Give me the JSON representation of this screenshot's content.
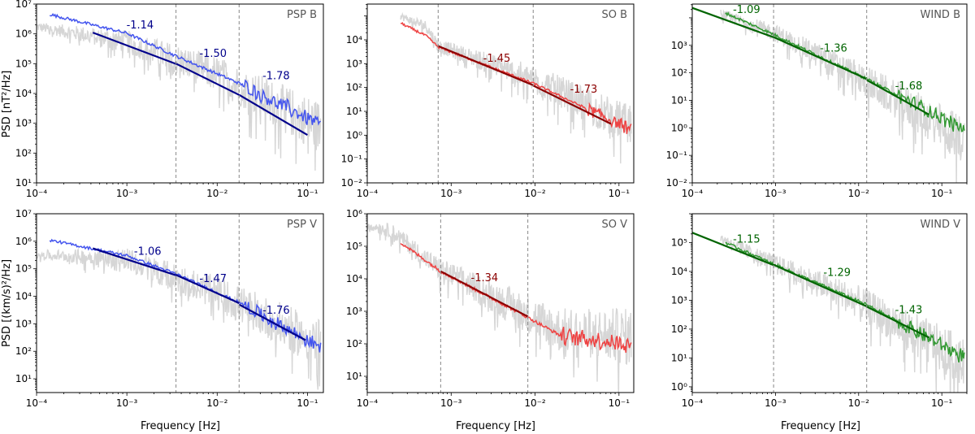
{
  "figure": {
    "x_label": "Frequency [Hz]",
    "y_label_top": "PSD [nT²/Hz]",
    "y_label_bottom": "PSD [(km/s)²/Hz]"
  },
  "chart_data": [
    {
      "type": "line",
      "title": "PSP B",
      "color": "#4455ee",
      "dark": "#00008b",
      "xlim": [
        0.0001,
        0.15
      ],
      "ylim_exp": [
        1,
        7
      ],
      "x_ticks": [
        "10⁻⁴",
        "10⁻³",
        "10⁻²",
        "10⁻¹"
      ],
      "y_ticks": [
        "10¹",
        "10²",
        "10³",
        "10⁴",
        "10⁵",
        "10⁶",
        "10⁷"
      ],
      "breaks": [
        0.0035,
        0.0175
      ],
      "raw_start": 0.0001,
      "raw_anchor": [
        [
          0.0001,
          1800000
        ],
        [
          0.001,
          600000
        ],
        [
          0.01,
          50000
        ],
        [
          0.1,
          1500
        ]
      ],
      "smooth_anchor": [
        [
          0.00014,
          4500000
        ],
        [
          0.001,
          1050000
        ],
        [
          0.0035,
          180000
        ],
        [
          0.0175,
          22000
        ],
        [
          0.15,
          800
        ]
      ],
      "smooth_fill_from": 0.02,
      "fits": [
        {
          "slope": -1.14,
          "label": "-1.14",
          "from": 0.00042,
          "to": 0.0035,
          "y_at_from": 1100000
        },
        {
          "slope": -1.5,
          "label": "-1.50",
          "from": 0.0035,
          "to": 0.0175,
          "y_at_from": 100000
        },
        {
          "slope": -1.78,
          "label": "-1.78",
          "from": 0.0175,
          "to": 0.1,
          "y_at_from": 9000
        }
      ],
      "labels": [
        {
          "text": "-1.14",
          "x": 0.0014,
          "y": 1500000
        },
        {
          "text": "-1.50",
          "x": 0.009,
          "y": 170000
        },
        {
          "text": "-1.78",
          "x": 0.045,
          "y": 30000
        }
      ]
    },
    {
      "type": "line",
      "title": "SO B",
      "color": "#ee4444",
      "dark": "#8b0000",
      "xlim": [
        0.0001,
        0.15
      ],
      "ylim_exp": [
        -3,
        4.5
      ],
      "x_ticks": [
        "10⁻⁴",
        "10⁻³",
        "10⁻²",
        "10⁻¹"
      ],
      "y_ticks": [
        "10⁻²",
        "10⁻¹",
        "10⁰",
        "10¹",
        "10²",
        "10³",
        "10⁴"
      ],
      "breaks": [
        0.0007,
        0.0095
      ],
      "raw_start": 0.00025,
      "raw_anchor": [
        [
          0.00025,
          10000
        ],
        [
          0.0005,
          4000
        ],
        [
          0.0007,
          600
        ],
        [
          0.01,
          25
        ],
        [
          0.1,
          0.5
        ]
      ],
      "smooth_anchor": [
        [
          0.00025,
          5000
        ],
        [
          0.0005,
          1500
        ],
        [
          0.0007,
          500
        ],
        [
          0.0095,
          15
        ],
        [
          0.15,
          0.15
        ]
      ],
      "smooth_fill_from": 0.04,
      "fits": [
        {
          "slope": -1.45,
          "label": "-1.45",
          "from": 0.0007,
          "to": 0.0095,
          "y_at_from": 550
        },
        {
          "slope": -1.73,
          "label": "-1.73",
          "from": 0.0095,
          "to": 0.08,
          "y_at_from": 12
        }
      ],
      "labels": [
        {
          "text": "-1.45",
          "x": 0.0035,
          "y": 120
        },
        {
          "text": "-1.73",
          "x": 0.038,
          "y": 6
        }
      ]
    },
    {
      "type": "line",
      "title": "WIND B",
      "color": "#339933",
      "dark": "#006400",
      "xlim": [
        0.0001,
        0.2
      ],
      "ylim_exp": [
        -3,
        3.5
      ],
      "x_ticks": [
        "10⁻⁴",
        "10⁻³",
        "10⁻²",
        "10⁻¹"
      ],
      "y_ticks": [
        "10⁻²",
        "10⁻¹",
        "10⁰",
        "10¹",
        "10²",
        "10³"
      ],
      "breaks": [
        0.00095,
        0.0125
      ],
      "raw_start": 0.00022,
      "raw_anchor": [
        [
          0.00022,
          1500
        ],
        [
          0.001,
          300
        ],
        [
          0.01,
          8
        ],
        [
          0.17,
          0.05
        ]
      ],
      "smooth_anchor": [
        [
          0.00025,
          1500
        ],
        [
          0.00095,
          250
        ],
        [
          0.0125,
          6
        ],
        [
          0.17,
          0.1
        ]
      ],
      "smooth_fill_from": 0.03,
      "fits": [
        {
          "slope": -1.09,
          "label": "-1.09",
          "from": 0.0001,
          "to": 0.00095,
          "y_at_from": 2300
        },
        {
          "slope": -1.36,
          "label": "-1.36",
          "from": 0.00095,
          "to": 0.0125,
          "y_at_from": 200
        },
        {
          "slope": -1.68,
          "label": "-1.68",
          "from": 0.0125,
          "to": 0.07,
          "y_at_from": 5.5
        }
      ],
      "labels": [
        {
          "text": "-1.09",
          "x": 0.00045,
          "y": 1500
        },
        {
          "text": "-1.36",
          "x": 0.005,
          "y": 60
        },
        {
          "text": "-1.68",
          "x": 0.04,
          "y": 2.5
        }
      ]
    },
    {
      "type": "line",
      "title": "PSP V",
      "color": "#4455ee",
      "dark": "#00008b",
      "xlim": [
        0.0001,
        0.15
      ],
      "ylim_exp": [
        0.5,
        7
      ],
      "x_ticks": [
        "10⁻⁴",
        "10⁻³",
        "10⁻²",
        "10⁻¹"
      ],
      "y_ticks": [
        "10¹",
        "10²",
        "10³",
        "10⁴",
        "10⁵",
        "10⁶",
        "10⁷"
      ],
      "breaks": [
        0.0035,
        0.0175
      ],
      "raw_start": 0.0001,
      "raw_anchor": [
        [
          0.0001,
          350000
        ],
        [
          0.001,
          250000
        ],
        [
          0.01,
          15000
        ],
        [
          0.15,
          200
        ]
      ],
      "smooth_anchor": [
        [
          0.00014,
          1100000
        ],
        [
          0.001,
          300000
        ],
        [
          0.0035,
          65000
        ],
        [
          0.0175,
          6000
        ],
        [
          0.15,
          120
        ]
      ],
      "smooth_fill_from": 0.02,
      "fits": [
        {
          "slope": -1.06,
          "label": "-1.06",
          "from": 0.00042,
          "to": 0.0035,
          "y_at_from": 550000
        },
        {
          "slope": -1.47,
          "label": "-1.47",
          "from": 0.0035,
          "to": 0.0175,
          "y_at_from": 60000
        },
        {
          "slope": -1.76,
          "label": "-1.76",
          "from": 0.0175,
          "to": 0.095,
          "y_at_from": 5000
        }
      ],
      "labels": [
        {
          "text": "-1.06",
          "x": 0.0017,
          "y": 320000
        },
        {
          "text": "-1.47",
          "x": 0.009,
          "y": 33000
        },
        {
          "text": "-1.76",
          "x": 0.045,
          "y": 2300
        }
      ]
    },
    {
      "type": "line",
      "title": "SO V",
      "color": "#ee4444",
      "dark": "#8b0000",
      "xlim": [
        0.0001,
        0.15
      ],
      "ylim_exp": [
        0.5,
        6
      ],
      "x_ticks": [
        "10⁻⁴",
        "10⁻³",
        "10⁻²",
        "10⁻¹"
      ],
      "y_ticks": [
        "10¹",
        "10²",
        "10³",
        "10⁴",
        "10⁵",
        "10⁶"
      ],
      "breaks": [
        0.00075,
        0.0082
      ],
      "raw_start": 0.0001,
      "raw_anchor": [
        [
          0.0001,
          500000
        ],
        [
          0.0002,
          300000
        ],
        [
          0.00075,
          20000
        ],
        [
          0.008,
          1000
        ],
        [
          0.02,
          300
        ],
        [
          0.12,
          200
        ]
      ],
      "smooth_anchor": [
        [
          0.00025,
          130000
        ],
        [
          0.00075,
          17000
        ],
        [
          0.0082,
          650
        ],
        [
          0.02,
          180
        ],
        [
          0.12,
          100
        ]
      ],
      "smooth_fill_from": 0.02,
      "fits": [
        {
          "slope": -1.34,
          "label": "-1.34",
          "from": 0.00075,
          "to": 0.0082,
          "y_at_from": 17000
        }
      ],
      "labels": [
        {
          "text": "-1.34",
          "x": 0.0025,
          "y": 8500
        }
      ]
    },
    {
      "type": "line",
      "title": "WIND V",
      "color": "#339933",
      "dark": "#006400",
      "xlim": [
        0.0001,
        0.2
      ],
      "ylim_exp": [
        -0.2,
        6
      ],
      "x_ticks": [
        "10⁻⁴",
        "10⁻³",
        "10⁻²",
        "10⁻¹"
      ],
      "y_ticks": [
        "10⁰",
        "10¹",
        "10²",
        "10³",
        "10⁴",
        "10⁵"
      ],
      "breaks": [
        0.00095,
        0.0125
      ],
      "raw_start": 0.00022,
      "raw_anchor": [
        [
          0.00022,
          150000
        ],
        [
          0.001,
          20000
        ],
        [
          0.01,
          1000
        ],
        [
          0.17,
          10
        ]
      ],
      "smooth_anchor": [
        [
          0.00025,
          100000
        ],
        [
          0.00095,
          18000
        ],
        [
          0.0125,
          700
        ],
        [
          0.17,
          12
        ]
      ],
      "smooth_fill_from": 0.03,
      "fits": [
        {
          "slope": -1.15,
          "label": "-1.15",
          "from": 0.0001,
          "to": 0.00095,
          "y_at_from": 220000
        },
        {
          "slope": -1.29,
          "label": "-1.29",
          "from": 0.00095,
          "to": 0.0125,
          "y_at_from": 17000
        },
        {
          "slope": -1.43,
          "label": "-1.43",
          "from": 0.0125,
          "to": 0.07,
          "y_at_from": 600
        }
      ],
      "labels": [
        {
          "text": "-1.15",
          "x": 0.00045,
          "y": 100000
        },
        {
          "text": "-1.29",
          "x": 0.0055,
          "y": 7000
        },
        {
          "text": "-1.43",
          "x": 0.04,
          "y": 350
        }
      ]
    }
  ]
}
